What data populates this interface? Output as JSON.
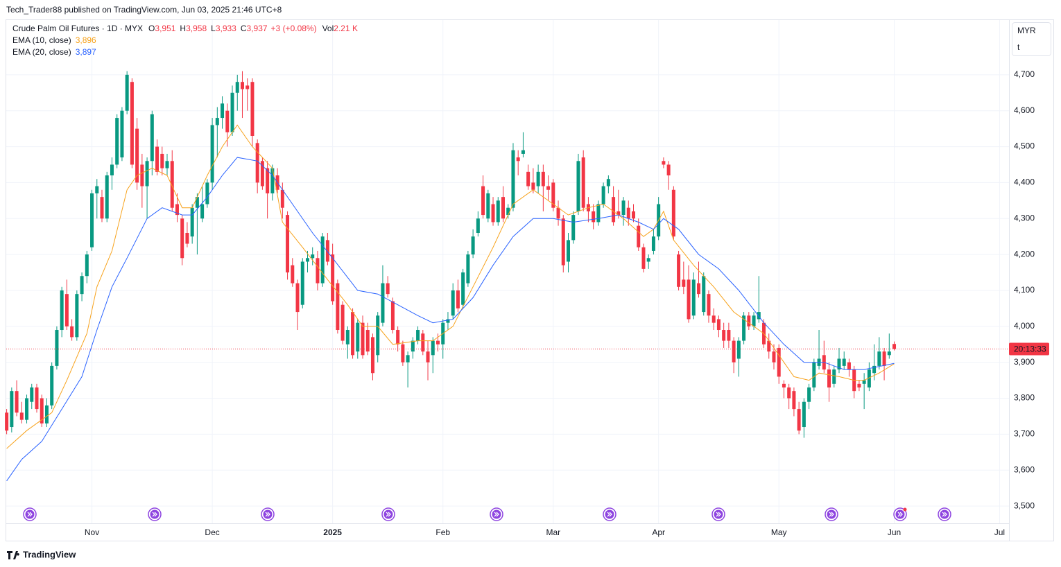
{
  "header": {
    "publisher": "Tech_Trader88 published on TradingView.com, Jun 03, 2025 21:46 UTC+8",
    "brand": "TradingView"
  },
  "chart_data": {
    "type": "candlestick",
    "symbol": "Crude Palm Oil Futures · 1D · MYX",
    "ohlc_legend": [
      {
        "label": "O",
        "text": "3,951"
      },
      {
        "label": "H",
        "text": "3,958"
      },
      {
        "label": "L",
        "text": "3,933"
      },
      {
        "label": "C",
        "text": "3,937"
      }
    ],
    "change": "+3 (+0.08%)",
    "volume_label": "Vol",
    "volume": "2.21 K",
    "currency": "MYR",
    "unit": "t",
    "countdown": "20:13:33",
    "up_color": "#089981",
    "down_color": "#f23645",
    "grid": true,
    "xlim": [
      -0.5,
      198.5
    ],
    "xticks": [
      {
        "value": 17,
        "label": "Nov"
      },
      {
        "value": 41,
        "label": "Dec"
      },
      {
        "value": 65,
        "label": "2025"
      },
      {
        "value": 87,
        "label": "Feb"
      },
      {
        "value": 109,
        "label": "Mar"
      },
      {
        "value": 130,
        "label": "Apr"
      },
      {
        "value": 154,
        "label": "May"
      },
      {
        "value": 177,
        "label": "Jun"
      },
      {
        "value": 198,
        "label": "Jul"
      }
    ],
    "ylim": [
      3452,
      4854
    ],
    "yticks": [
      {
        "value": 3500,
        "label": "3,500"
      },
      {
        "value": 3600,
        "label": "3,600"
      },
      {
        "value": 3700,
        "label": "3,700"
      },
      {
        "value": 3800,
        "label": "3,800"
      },
      {
        "value": 3900,
        "label": "3,900"
      },
      {
        "value": 4000,
        "label": "4,000"
      },
      {
        "value": 4100,
        "label": "4,100"
      },
      {
        "value": 4200,
        "label": "4,200"
      },
      {
        "value": 4300,
        "label": "4,300"
      },
      {
        "value": 4400,
        "label": "4,400"
      },
      {
        "value": 4500,
        "label": "4,500"
      },
      {
        "value": 4600,
        "label": "4,600"
      },
      {
        "value": 4700,
        "label": "4,700"
      }
    ],
    "open": [
      3760,
      3720,
      3820,
      3760,
      3740,
      3790,
      3830,
      3800,
      3730,
      3780,
      3890,
      3990,
      4090,
      4000,
      3970,
      4090,
      4140,
      4220,
      4370,
      4360,
      4300,
      4420,
      4450,
      4470,
      4600,
      4680,
      4550,
      4450,
      4390,
      4460,
      4500,
      4480,
      4440,
      4460,
      4340,
      4300,
      4260,
      4250,
      4330,
      4300,
      4340,
      4400,
      4560,
      4580,
      4600,
      4540,
      4650,
      4680,
      4670,
      4680,
      4510,
      4460,
      4440,
      4370,
      4420,
      4380,
      4310,
      4170,
      4120,
      4060,
      4180,
      4190,
      4190,
      4120,
      4240,
      4200,
      4120,
      4060,
      3950,
      4040,
      3930,
      4010,
      3990,
      3970,
      3920,
      4010,
      4120,
      4070,
      3990,
      3950,
      3900,
      3930,
      3960,
      3980,
      3930,
      3920,
      3960,
      3950,
      4010,
      4030,
      4100,
      4060,
      4120,
      4200,
      4260,
      4390,
      4300,
      4340,
      4290,
      4360,
      4310,
      4330,
      4470,
      4480,
      4430,
      4400,
      4390,
      4430,
      4390,
      4400,
      4330,
      4300,
      4180,
      4240,
      4320,
      4470,
      4340,
      4320,
      4290,
      4340,
      4390,
      4360,
      4320,
      4310,
      4330,
      4320,
      4280,
      4220,
      4180,
      4210,
      4250,
      4460,
      4450,
      4380,
      4200,
      4130,
      4130,
      4030,
      4120,
      4040,
      4090,
      4030,
      4020,
      3990,
      3990,
      3960,
      3910,
      3960,
      4030,
      4000,
      4020,
      4010,
      3960,
      3930,
      3940,
      3840,
      3830,
      3820,
      3770,
      3720,
      3790,
      3830,
      3890,
      3920,
      3880,
      3840,
      3880,
      3890,
      3900,
      3880,
      3840,
      3840,
      3830,
      3870,
      3890,
      3930,
      3920,
      3951
    ],
    "high": [
      3770,
      3830,
      3850,
      3790,
      3810,
      3840,
      3840,
      3810,
      3800,
      3900,
      4000,
      4110,
      4130,
      4020,
      4100,
      4150,
      4210,
      4380,
      4410,
      4380,
      4430,
      4470,
      4590,
      4610,
      4710,
      4690,
      4580,
      4480,
      4470,
      4600,
      4520,
      4500,
      4480,
      4490,
      4370,
      4310,
      4290,
      4340,
      4370,
      4390,
      4410,
      4580,
      4610,
      4640,
      4620,
      4670,
      4700,
      4710,
      4690,
      4690,
      4520,
      4470,
      4460,
      4450,
      4440,
      4400,
      4320,
      4190,
      4130,
      4190,
      4210,
      4220,
      4210,
      4260,
      4260,
      4230,
      4130,
      4070,
      4000,
      4050,
      4020,
      4030,
      4010,
      3980,
      4040,
      4170,
      4140,
      4080,
      4000,
      3960,
      3930,
      3970,
      4000,
      3990,
      3960,
      3970,
      3980,
      4020,
      4040,
      4120,
      4130,
      4160,
      4210,
      4270,
      4320,
      4420,
      4380,
      4360,
      4360,
      4390,
      4340,
      4510,
      4490,
      4540,
      4450,
      4440,
      4450,
      4450,
      4420,
      4410,
      4350,
      4310,
      4260,
      4320,
      4480,
      4490,
      4360,
      4340,
      4350,
      4400,
      4420,
      4390,
      4380,
      4360,
      4350,
      4340,
      4300,
      4230,
      4200,
      4270,
      4360,
      4470,
      4460,
      4390,
      4210,
      4180,
      4170,
      4150,
      4180,
      4150,
      4100,
      4050,
      4030,
      4010,
      4010,
      3970,
      3970,
      4040,
      4040,
      4040,
      4140,
      4020,
      3980,
      3950,
      3950,
      3850,
      3840,
      3830,
      3790,
      3800,
      3840,
      3910,
      3990,
      3960,
      3900,
      3890,
      3940,
      3930,
      3910,
      3890,
      3850,
      3870,
      3900,
      3950,
      3970,
      3940,
      3980,
      3958
    ],
    "low": [
      3700,
      3705,
      3750,
      3730,
      3730,
      3770,
      3760,
      3720,
      3720,
      3770,
      3880,
      3970,
      3990,
      3960,
      3960,
      4070,
      4120,
      4210,
      4300,
      4290,
      4290,
      4380,
      4440,
      4460,
      4590,
      4440,
      4380,
      4330,
      4300,
      4420,
      4420,
      4420,
      4420,
      4320,
      4290,
      4170,
      4220,
      4230,
      4200,
      4290,
      4330,
      4380,
      4470,
      4550,
      4500,
      4530,
      4600,
      4580,
      4600,
      4500,
      4370,
      4380,
      4300,
      4350,
      4370,
      4300,
      4130,
      4110,
      3990,
      4050,
      4150,
      4170,
      4100,
      4110,
      4170,
      4060,
      3980,
      3950,
      3910,
      3910,
      3910,
      3910,
      3920,
      3850,
      3900,
      4000,
      4080,
      3980,
      3930,
      3890,
      3830,
      3910,
      3950,
      3920,
      3850,
      3870,
      3930,
      3910,
      3990,
      4020,
      4040,
      4050,
      4110,
      4190,
      4250,
      4300,
      4290,
      4280,
      4280,
      4290,
      4300,
      4320,
      4420,
      4470,
      4380,
      4370,
      4370,
      4320,
      4350,
      4320,
      4280,
      4150,
      4150,
      4230,
      4310,
      4320,
      4290,
      4270,
      4280,
      4330,
      4370,
      4280,
      4300,
      4280,
      4280,
      4290,
      4210,
      4150,
      4160,
      4200,
      4240,
      4440,
      4380,
      4240,
      4100,
      4090,
      4010,
      4020,
      4080,
      4030,
      4010,
      3990,
      3970,
      3940,
      3940,
      3870,
      3860,
      3950,
      3990,
      3990,
      4010,
      3940,
      3910,
      3880,
      3840,
      3800,
      3770,
      3750,
      3700,
      3690,
      3770,
      3820,
      3880,
      3870,
      3790,
      3830,
      3870,
      3880,
      3860,
      3800,
      3820,
      3770,
      3820,
      3850,
      3880,
      3850,
      3910,
      3933
    ],
    "close": [
      3710,
      3820,
      3760,
      3740,
      3800,
      3830,
      3770,
      3730,
      3780,
      3890,
      3990,
      4100,
      4000,
      3970,
      4090,
      4140,
      4200,
      4370,
      4390,
      4300,
      4420,
      4450,
      4580,
      4600,
      4700,
      4450,
      4400,
      4390,
      4460,
      4590,
      4430,
      4440,
      4460,
      4330,
      4310,
      4190,
      4230,
      4330,
      4360,
      4340,
      4400,
      4560,
      4580,
      4620,
      4540,
      4650,
      4680,
      4660,
      4660,
      4530,
      4400,
      4390,
      4370,
      4440,
      4380,
      4330,
      4150,
      4120,
      4040,
      4180,
      4190,
      4200,
      4120,
      4250,
      4180,
      4070,
      3990,
      3960,
      3990,
      3920,
      4010,
      3920,
      3930,
      3870,
      4030,
      4120,
      4090,
      3990,
      3950,
      3900,
      3920,
      3960,
      3990,
      3930,
      3900,
      3960,
      3950,
      4010,
      4020,
      4100,
      4050,
      4150,
      4200,
      4250,
      4300,
      4310,
      4370,
      4290,
      4350,
      4300,
      4330,
      4490,
      4460,
      4490,
      4390,
      4380,
      4430,
      4390,
      4380,
      4330,
      4300,
      4170,
      4240,
      4310,
      4460,
      4330,
      4320,
      4290,
      4340,
      4390,
      4410,
      4290,
      4310,
      4350,
      4300,
      4300,
      4220,
      4160,
      4190,
      4250,
      4340,
      4450,
      4420,
      4250,
      4110,
      4110,
      4020,
      4130,
      4090,
      4140,
      4030,
      4010,
      3990,
      3960,
      3960,
      3900,
      3960,
      4030,
      4000,
      4030,
      4040,
      3950,
      3930,
      3900,
      3860,
      3830,
      3800,
      3770,
      3710,
      3790,
      3830,
      3900,
      3910,
      3880,
      3830,
      3880,
      3910,
      3910,
      3880,
      3820,
      3830,
      3850,
      3880,
      3890,
      3930,
      3890,
      3930,
      3937
    ],
    "series": [
      {
        "name": "EMA (10, close)",
        "value_label": "3,896",
        "color": "#f7a21b",
        "x": [
          0,
          4,
          9,
          12,
          16,
          18,
          21,
          24,
          26,
          29,
          32,
          35,
          37,
          40,
          43,
          46,
          49,
          53,
          55,
          59,
          64,
          68,
          71,
          74,
          77,
          82,
          85,
          89,
          93,
          97,
          101,
          105,
          109,
          112,
          116,
          119,
          123,
          127,
          129,
          131,
          133,
          137,
          141,
          145,
          148,
          151,
          154,
          157,
          160,
          162,
          166,
          169,
          171,
          174,
          177
        ],
        "values": [
          3660,
          3710,
          3760,
          3850,
          3980,
          4110,
          4210,
          4380,
          4420,
          4440,
          4420,
          4330,
          4330,
          4420,
          4500,
          4560,
          4500,
          4440,
          4290,
          4220,
          4130,
          4060,
          4000,
          4000,
          3950,
          3960,
          3960,
          4000,
          4110,
          4220,
          4340,
          4380,
          4340,
          4310,
          4330,
          4340,
          4300,
          4250,
          4270,
          4320,
          4240,
          4170,
          4110,
          4040,
          4010,
          3980,
          3920,
          3860,
          3850,
          3870,
          3860,
          3850,
          3850,
          3870,
          3896
        ]
      },
      {
        "name": "EMA (20, close)",
        "value_label": "3,897",
        "color": "#2962ff",
        "x": [
          0,
          3,
          7,
          11,
          15,
          18,
          21,
          24,
          28,
          31,
          35,
          37,
          40,
          43,
          46,
          50,
          53,
          57,
          61,
          65,
          70,
          74,
          78,
          82,
          85,
          89,
          93,
          97,
          101,
          105,
          109,
          113,
          118,
          122,
          126,
          129,
          131,
          134,
          138,
          142,
          146,
          151,
          155,
          159,
          163,
          167,
          171,
          177
        ],
        "values": [
          3570,
          3630,
          3680,
          3770,
          3860,
          3990,
          4110,
          4190,
          4300,
          4330,
          4310,
          4310,
          4360,
          4420,
          4470,
          4460,
          4420,
          4340,
          4260,
          4190,
          4100,
          4090,
          4060,
          4030,
          4010,
          4020,
          4080,
          4170,
          4250,
          4300,
          4300,
          4290,
          4300,
          4310,
          4290,
          4270,
          4300,
          4270,
          4200,
          4160,
          4100,
          4010,
          3950,
          3900,
          3900,
          3880,
          3880,
          3897
        ]
      }
    ]
  }
}
